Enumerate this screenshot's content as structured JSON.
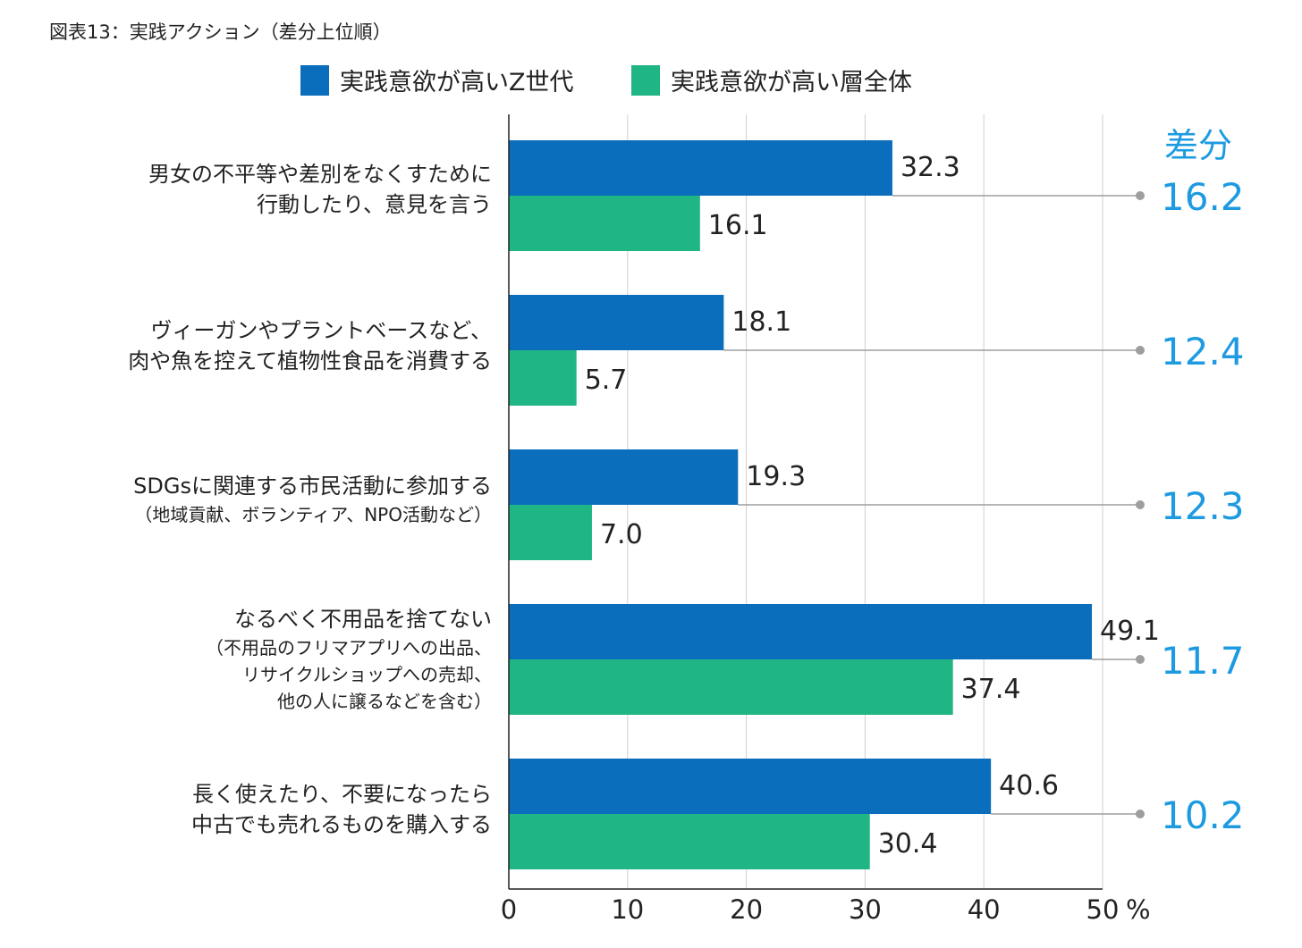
{
  "title": "図表13：実践アクション（差分上位順）",
  "diff_header": "差分",
  "x_unit": "%",
  "colors": {
    "z_gen": "#0a6ebd",
    "all": "#1fb585",
    "diff": "#1e9be0",
    "connector": "#9e9e9e",
    "grid": "#cfcfcf",
    "axis": "#222222"
  },
  "chart_data": {
    "type": "bar",
    "orientation": "horizontal",
    "categories": [
      {
        "main": [
          "男女の不平等や差別をなくすために",
          "行動したり、意見を言う"
        ],
        "sub": []
      },
      {
        "main": [
          "ヴィーガンやプラントベースなど、",
          "肉や魚を控えて植物性食品を消費する"
        ],
        "sub": []
      },
      {
        "main": [
          "SDGsに関連する市民活動に参加する"
        ],
        "sub": [
          "（地域貢献、ボランティア、NPO活動など）"
        ]
      },
      {
        "main": [
          "なるべく不用品を捨てない"
        ],
        "sub": [
          "（不用品のフリマアプリへの出品、",
          "リサイクルショップへの売却、",
          "他の人に譲るなどを含む）"
        ]
      },
      {
        "main": [
          "長く使えたり、不要になったら",
          "中古でも売れるものを購入する"
        ],
        "sub": []
      }
    ],
    "series": [
      {
        "name": "実践意欲が高いZ世代",
        "values": [
          32.3,
          18.1,
          19.3,
          49.1,
          40.6
        ],
        "labels": [
          "32.3",
          "18.1",
          "19.3",
          "49.1",
          "40.6"
        ]
      },
      {
        "name": "実践意欲が高い層全体",
        "values": [
          16.1,
          5.7,
          7.0,
          37.4,
          30.4
        ],
        "labels": [
          "16.1",
          "5.7",
          "7.0",
          "37.4",
          "30.4"
        ]
      }
    ],
    "diff": [
      "16.2",
      "12.4",
      "12.3",
      "11.7",
      "10.2"
    ],
    "xlim": [
      0,
      50
    ],
    "xticks": [
      "0",
      "10",
      "20",
      "30",
      "40",
      "50"
    ],
    "grid": true,
    "legend": "top"
  }
}
